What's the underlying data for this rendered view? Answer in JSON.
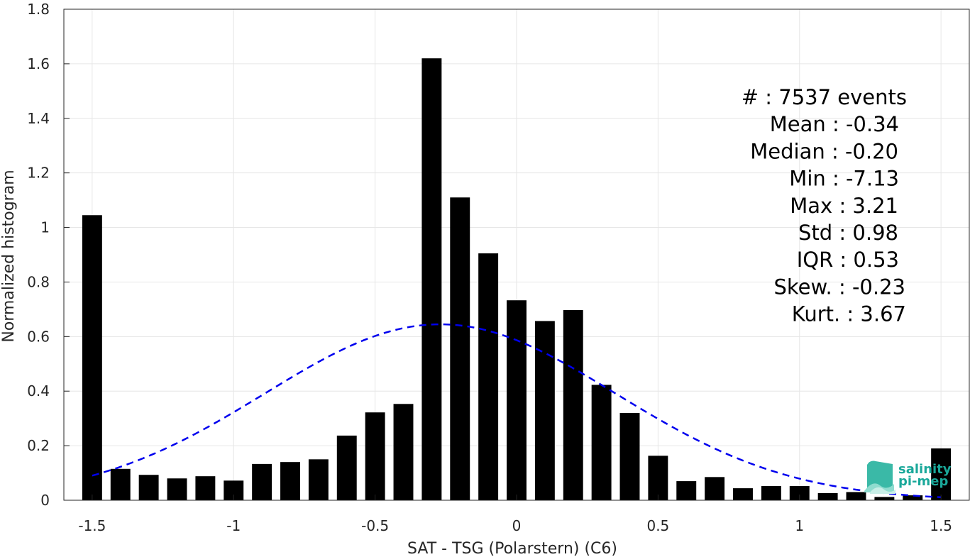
{
  "chart_data": {
    "type": "bar",
    "xlabel": "SAT - TSG (Polarstern) (C6)",
    "ylabel": "Normalized histogram",
    "xlim": [
      -1.6,
      1.6
    ],
    "ylim": [
      0,
      1.8
    ],
    "xticks": [
      "-1.5",
      "-1",
      "-0.5",
      "0",
      "0.5",
      "1",
      "1.5"
    ],
    "xtick_values": [
      -1.5,
      -1,
      -0.5,
      0,
      0.5,
      1,
      1.5
    ],
    "yticks": [
      "0",
      "0.2",
      "0.4",
      "0.6",
      "0.8",
      "1",
      "1.2",
      "1.4",
      "1.6",
      "1.8"
    ],
    "ytick_values": [
      0,
      0.2,
      0.4,
      0.6,
      0.8,
      1.0,
      1.2,
      1.4,
      1.6,
      1.8
    ],
    "grid": true,
    "bar_color": "#000000",
    "bar_width": 0.07,
    "x": [
      -1.5,
      -1.4,
      -1.3,
      -1.2,
      -1.1,
      -1.0,
      -0.9,
      -0.8,
      -0.7,
      -0.6,
      -0.5,
      -0.4,
      -0.3,
      -0.2,
      -0.1,
      0.0,
      0.1,
      0.2,
      0.3,
      0.4,
      0.5,
      0.6,
      0.7,
      0.8,
      0.9,
      1.0,
      1.1,
      1.2,
      1.3,
      1.4,
      1.5
    ],
    "values": [
      1.045,
      0.115,
      0.093,
      0.08,
      0.088,
      0.072,
      0.133,
      0.14,
      0.15,
      0.237,
      0.322,
      0.353,
      1.62,
      1.11,
      0.905,
      0.733,
      0.657,
      0.697,
      0.423,
      0.32,
      0.163,
      0.07,
      0.085,
      0.044,
      0.052,
      0.052,
      0.026,
      0.03,
      0.012,
      0.018,
      0.19
    ],
    "fit_curve": {
      "type": "gaussian",
      "color": "#0000ee",
      "style": "dashed",
      "mean": -0.27,
      "std": 0.62,
      "peak": 0.645,
      "x_range": [
        -1.5,
        1.5
      ]
    },
    "stats": [
      {
        "label": "#  : 7537 events"
      },
      {
        "label": "Mean : -0.34"
      },
      {
        "label": "Median : -0.20"
      },
      {
        "label": "Min : -7.13"
      },
      {
        "label": "Max : 3.21"
      },
      {
        "label": "Std : 0.98"
      },
      {
        "label": "IQR : 0.53"
      },
      {
        "label": "Skew. : -0.23"
      },
      {
        "label": "Kurt. : 3.67"
      }
    ]
  },
  "logo": {
    "line1": "salinity",
    "line2": "pi-mep",
    "color": "#1aa89a"
  }
}
